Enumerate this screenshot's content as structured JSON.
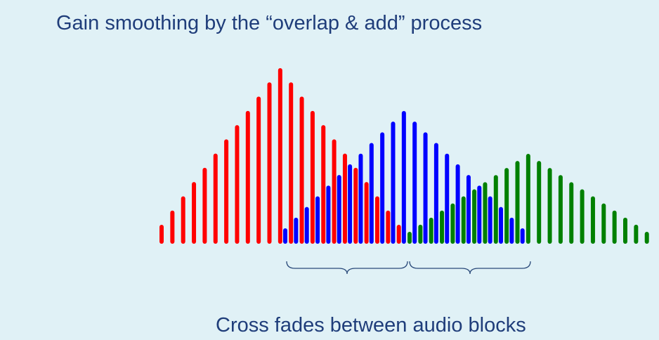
{
  "header": {
    "title": "Gain smoothing by the “overlap & add” process"
  },
  "caption": "Cross fades between audio blocks"
}
